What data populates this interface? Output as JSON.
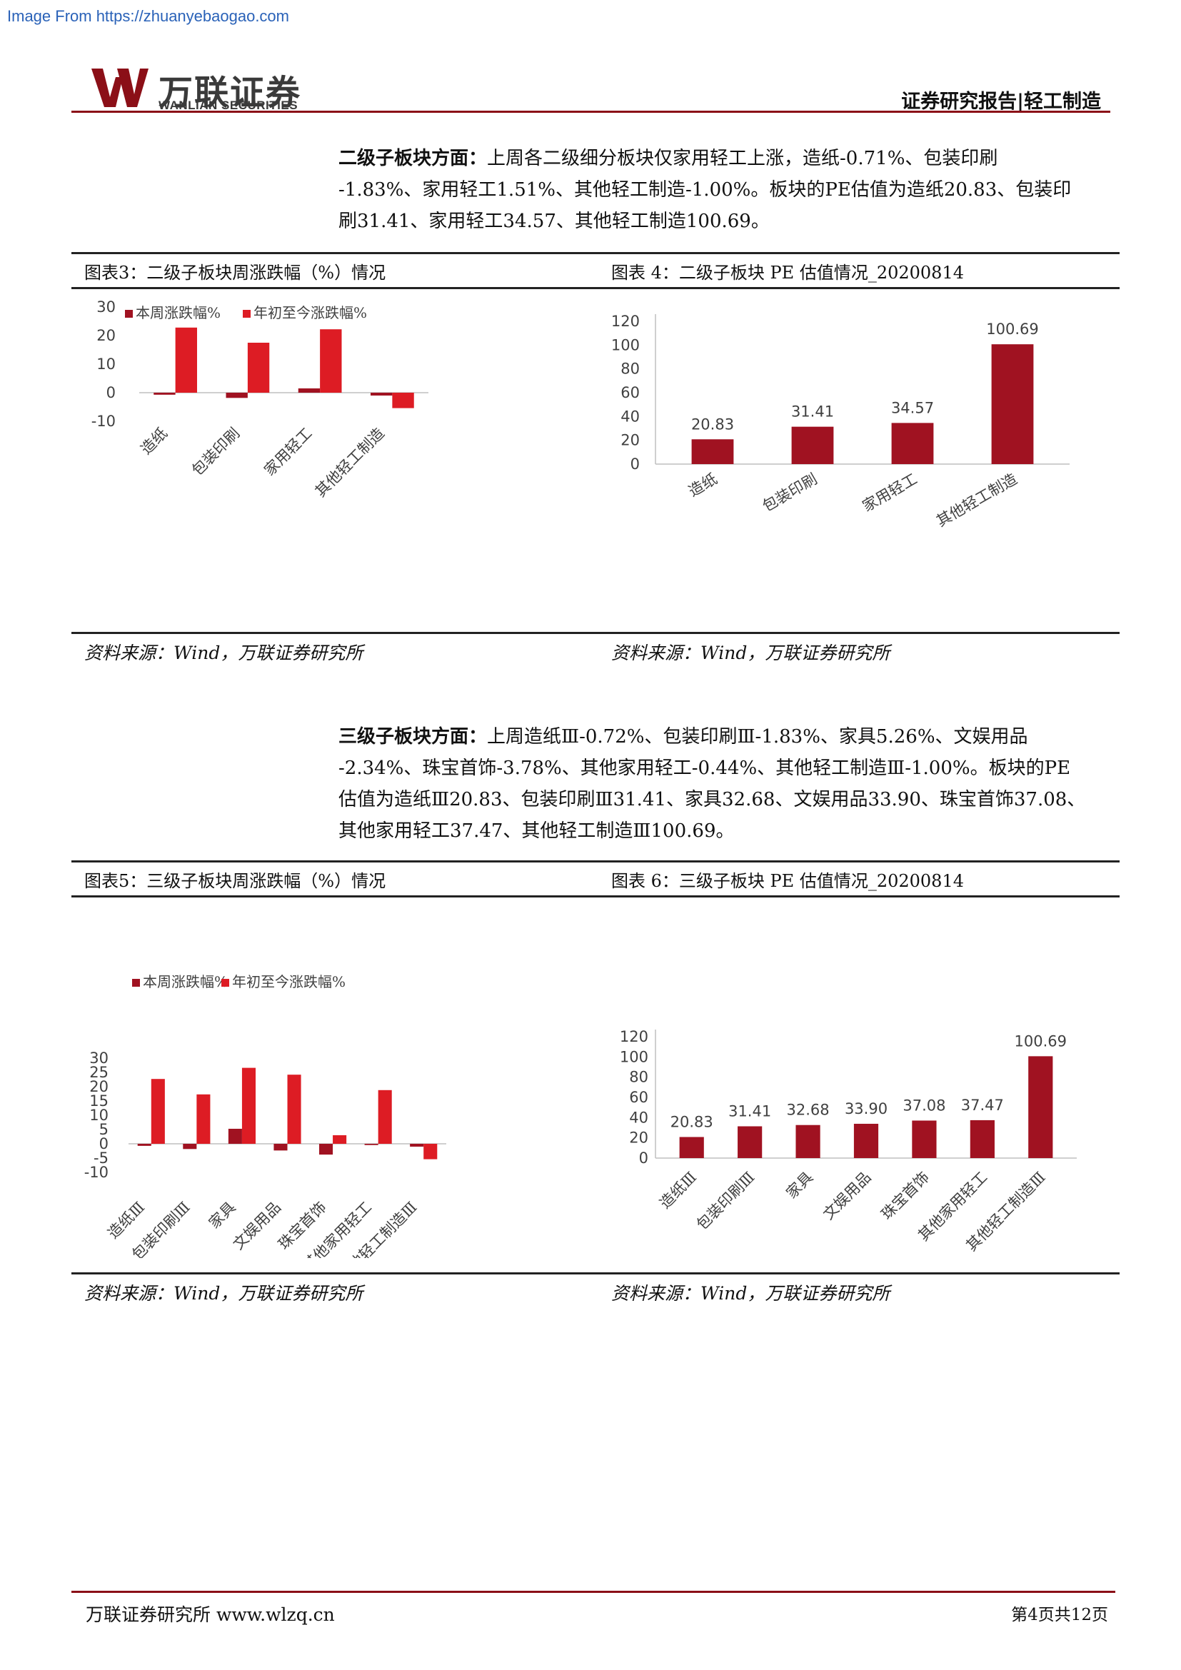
{
  "source_url": "Image From https://zhuanyebaogao.com",
  "header": {
    "logo_cn": "万联证券",
    "logo_en": "WANLIAN SECURITIES",
    "report_tag": "证券研究报告|轻工制造",
    "brand_color": "#8b0f17"
  },
  "section1": {
    "lead": "二级子板块方面：",
    "line1": "上周各二级细分板块仅家用轻工上涨，造纸-0.71%、包装印刷",
    "line2": "-1.83%、家用轻工1.51%、其他轻工制造-1.00%。板块的PE估值为造纸20.83、包装印",
    "line3": "刷31.41、家用轻工34.57、其他轻工制造100.69。"
  },
  "section2": {
    "lead": "三级子板块方面：",
    "line1": "上周造纸Ⅲ-0.72%、包装印刷Ⅲ-1.83%、家具5.26%、文娱用品",
    "line2": "-2.34%、珠宝首饰-3.78%、其他家用轻工-0.44%、其他轻工制造Ⅲ-1.00%。板块的PE",
    "line3": "估值为造纸Ⅲ20.83、包装印刷Ⅲ31.41、家具32.68、文娱用品33.90、珠宝首饰37.08、",
    "line4": "其他家用轻工37.47、其他轻工制造Ⅲ100.69。"
  },
  "captions": {
    "fig3": "图表3：二级子板块周涨跌幅（%）情况",
    "fig4": "图表 4：二级子板块 PE 估值情况_20200814",
    "fig5": "图表5：三级子板块周涨跌幅（%）情况",
    "fig6": "图表 6：三级子板块 PE 估值情况_20200814",
    "source": "资料来源：Wind，万联证券研究所"
  },
  "footer": {
    "left": "万联证券研究所 www.wlzq.cn",
    "right": "第4页共12页"
  },
  "colors": {
    "dark_red": "#a01221",
    "bright_red": "#dd1c24"
  },
  "chart_data": [
    {
      "id": "fig3",
      "type": "bar",
      "categories": [
        "造纸",
        "包装印刷",
        "家用轻工",
        "其他轻工制造"
      ],
      "series": [
        {
          "name": "本周涨跌幅%",
          "values": [
            -0.71,
            -1.83,
            1.51,
            -1.0
          ]
        },
        {
          "name": "年初至今涨跌幅%",
          "values": [
            22.8,
            17.5,
            22.2,
            -5.4
          ]
        }
      ],
      "yticks": [
        "30",
        "20",
        "10",
        "0",
        "-10"
      ],
      "ylim": [
        -10,
        30
      ],
      "legend": "top"
    },
    {
      "id": "fig4",
      "type": "bar",
      "categories": [
        "造纸",
        "包装印刷",
        "家用轻工",
        "其他轻工制造"
      ],
      "values": [
        20.83,
        31.41,
        34.57,
        100.69
      ],
      "labels": [
        "20.83",
        "31.41",
        "34.57",
        "100.69"
      ],
      "yticks": [
        "120",
        "100",
        "80",
        "60",
        "40",
        "20",
        "0"
      ],
      "ylim": [
        0,
        120
      ]
    },
    {
      "id": "fig5",
      "type": "bar",
      "categories": [
        "造纸Ⅲ",
        "包装印刷Ⅲ",
        "家具",
        "文娱用品",
        "珠宝首饰",
        "其他家用轻工",
        "其他轻工制造Ⅲ"
      ],
      "series": [
        {
          "name": "本周涨跌幅%",
          "values": [
            -0.72,
            -1.83,
            5.26,
            -2.34,
            -3.78,
            -0.44,
            -1.0
          ]
        },
        {
          "name": "年初至今涨跌幅%",
          "values": [
            22.7,
            17.3,
            26.6,
            24.2,
            3.0,
            18.8,
            -5.4
          ]
        }
      ],
      "yticks": [
        "30",
        "25",
        "20",
        "15",
        "10",
        "5",
        "0",
        "-5",
        "-10"
      ],
      "ylim": [
        -10,
        30
      ],
      "legend": "top"
    },
    {
      "id": "fig6",
      "type": "bar",
      "categories": [
        "造纸Ⅲ",
        "包装印刷Ⅲ",
        "家具",
        "文娱用品",
        "珠宝首饰",
        "其他家用轻工",
        "其他轻工制造Ⅲ"
      ],
      "values": [
        20.83,
        31.41,
        32.68,
        33.9,
        37.08,
        37.47,
        100.69
      ],
      "labels": [
        "20.83",
        "31.41",
        "32.68",
        "33.90",
        "37.08",
        "37.47",
        "100.69"
      ],
      "yticks": [
        "120",
        "100",
        "80",
        "60",
        "40",
        "20",
        "0"
      ],
      "ylim": [
        0,
        120
      ]
    }
  ]
}
